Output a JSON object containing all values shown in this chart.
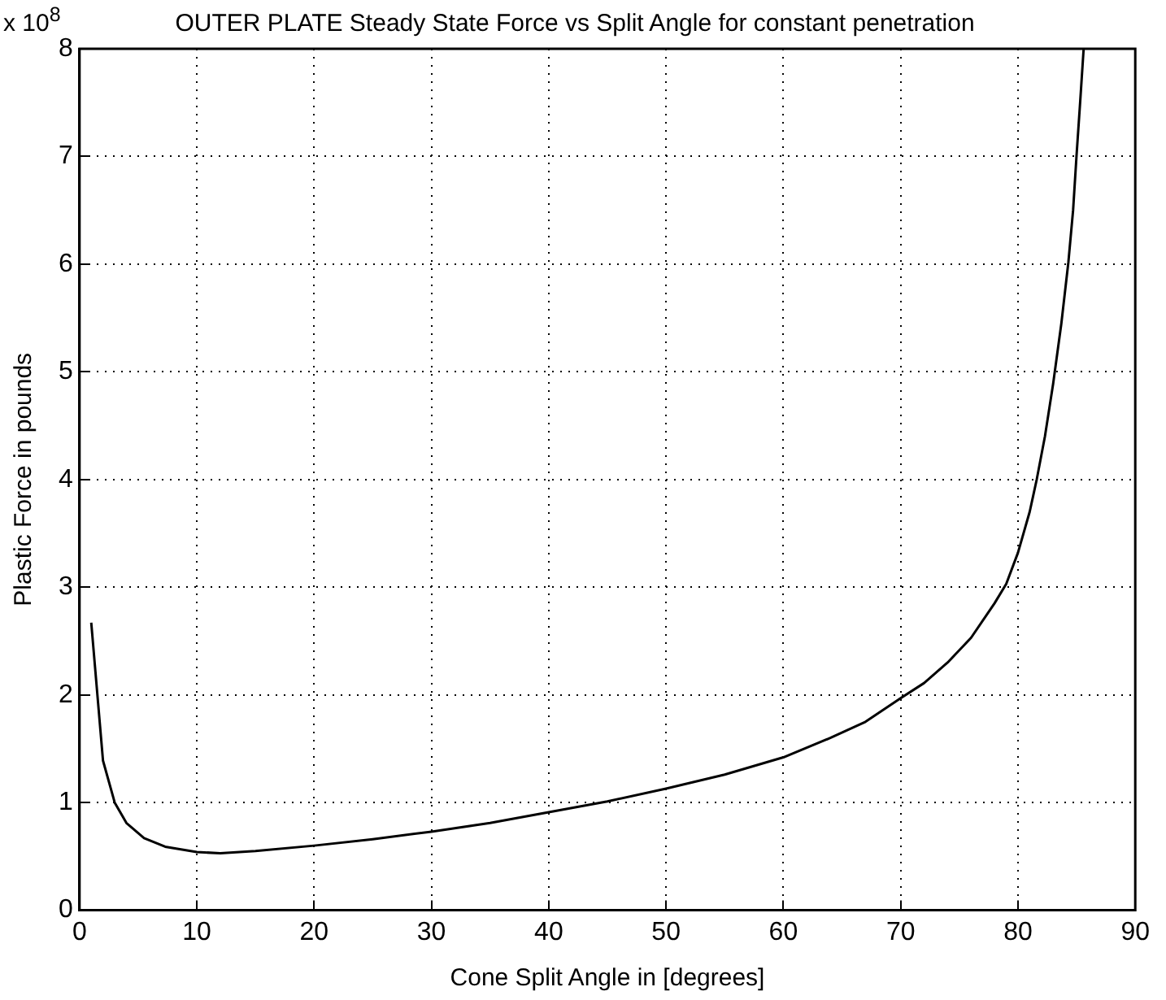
{
  "chart_data": {
    "type": "line",
    "title": "OUTER PLATE Steady State Force vs Split Angle for constant penetration",
    "xlabel": "Cone Split Angle in [degrees]",
    "ylabel": "Plastic Force in pounds",
    "annotations": [
      "x 10$^{8}$"
    ],
    "series": [
      {
        "color": "#000000",
        "x": [
          1,
          2,
          3,
          4,
          5.5,
          7.3,
          10,
          12,
          15,
          20,
          25,
          30,
          35,
          40,
          45,
          50,
          55,
          60,
          64,
          67,
          70,
          72,
          74,
          76,
          78,
          79,
          80,
          81,
          81.6,
          82.3,
          83,
          83.7,
          84.3,
          84.7,
          85,
          85.3,
          85.6
        ],
        "values": [
          2.67,
          1.39,
          1.0,
          0.81,
          0.67,
          0.59,
          0.54,
          0.53,
          0.55,
          0.6,
          0.66,
          0.73,
          0.81,
          0.91,
          1.01,
          1.13,
          1.26,
          1.42,
          1.6,
          1.75,
          1.97,
          2.11,
          2.3,
          2.53,
          2.85,
          3.03,
          3.32,
          3.7,
          4.0,
          4.4,
          4.89,
          5.45,
          6.02,
          6.5,
          7.02,
          7.5,
          8.0
        ]
      }
    ],
    "xlim": [
      0,
      90
    ],
    "ylim": [
      0,
      8
    ],
    "xticks": [
      0,
      10,
      20,
      30,
      40,
      50,
      60,
      70,
      80,
      90
    ],
    "yticks": [
      0,
      1,
      2,
      3,
      4,
      5,
      6,
      7,
      8
    ],
    "grid": true,
    "line_style": "solid"
  }
}
